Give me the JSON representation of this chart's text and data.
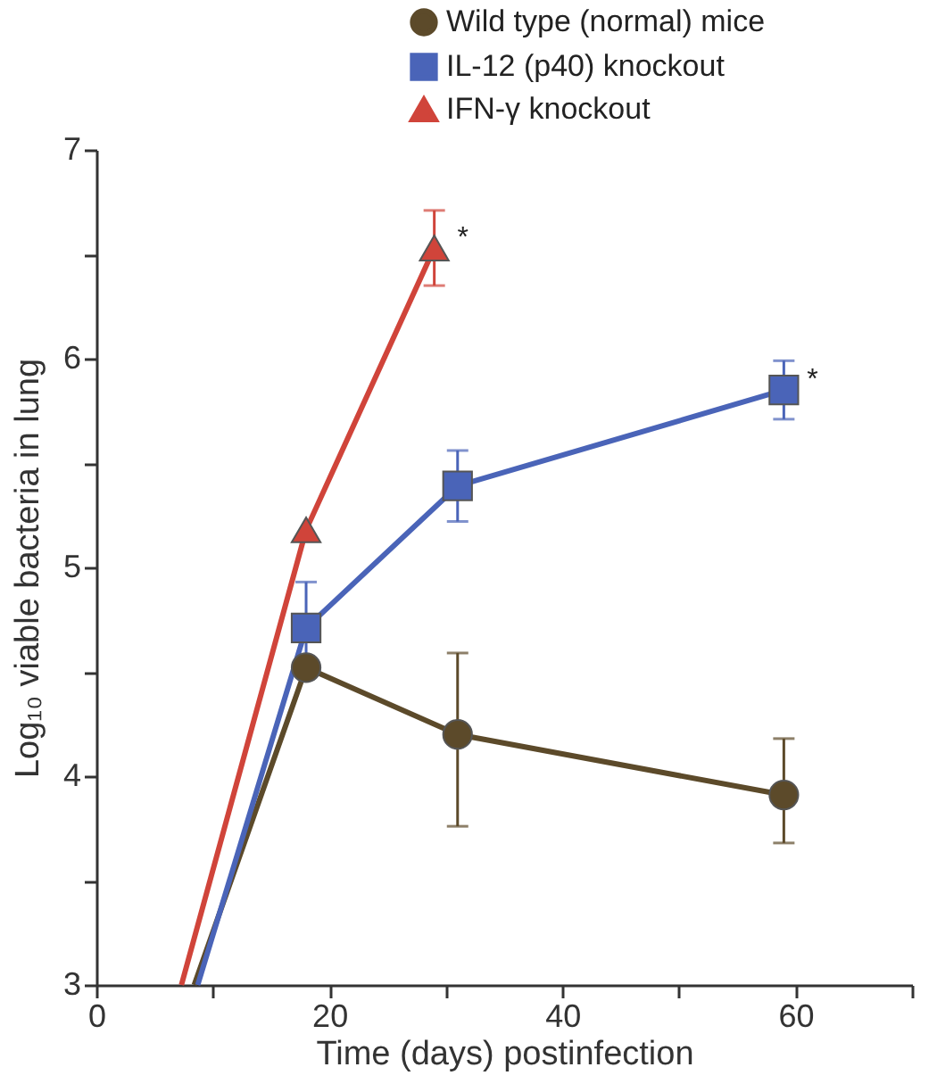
{
  "chart_data": {
    "type": "line",
    "xlabel": "Time (days) postinfection",
    "ylabel": "Log₁₀ viable bacteria in lung",
    "xlim": [
      0,
      70
    ],
    "xticks": [
      0,
      {
        "value": 10,
        "label": null
      },
      20,
      {
        "value": 30,
        "label": null
      },
      40,
      {
        "value": 50,
        "label": null
      },
      60,
      {
        "value": 70,
        "label": null
      }
    ],
    "ylim": [
      3,
      7
    ],
    "yticks": [
      3,
      {
        "value": 3.5,
        "label": null
      },
      4,
      {
        "value": 4.5,
        "label": null
      },
      5,
      {
        "value": 5.5,
        "label": null
      },
      6,
      {
        "value": 6.5,
        "label": null
      },
      7
    ],
    "grid": false,
    "legend": "top right",
    "series": [
      {
        "name": "Wild type (normal) mice",
        "color": "#5c4a2a",
        "marker": "circle",
        "x": [
          8.4,
          18,
          31,
          59
        ],
        "values": [
          3,
          4.52,
          4.2,
          3.91
        ],
        "errors": [
          null,
          null,
          [
            3.76,
            4.59
          ],
          [
            3.68,
            4.18
          ]
        ]
      },
      {
        "name": "IL-12 (p40) knockout",
        "color": "#4a64b8",
        "marker": "square",
        "x": [
          8.7,
          18,
          31,
          59
        ],
        "values": [
          3,
          4.71,
          5.39,
          5.85
        ],
        "errors": [
          null,
          0.22,
          0.17,
          0.14
        ]
      },
      {
        "name": "IFN-γ knockout",
        "color": "#d0443a",
        "marker": "triangle",
        "x": [
          7.3,
          18,
          29
        ],
        "values": [
          3,
          5.18,
          6.53
        ],
        "errors": [
          null,
          null,
          0.18
        ]
      }
    ],
    "annotations": [
      {
        "text": "*",
        "x": 29,
        "y": 6.53
      },
      {
        "text": "*",
        "x": 59,
        "y": 5.85
      }
    ]
  }
}
